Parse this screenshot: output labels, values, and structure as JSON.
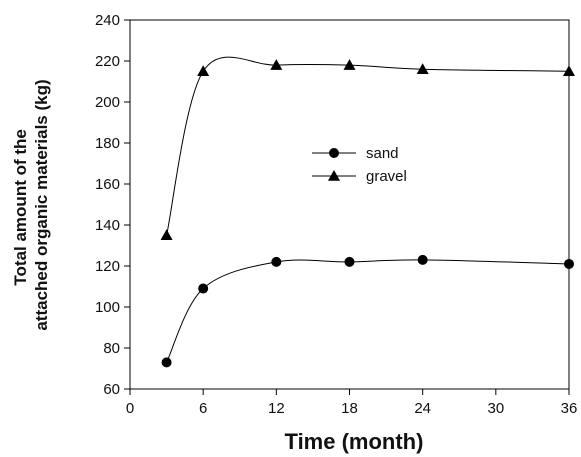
{
  "chart_data": {
    "type": "line",
    "xlabel": "Time (month)",
    "ylabel_lines": [
      "Total amount of the",
      "attached organic materials (kg)"
    ],
    "xlim": [
      0,
      36
    ],
    "ylim": [
      60,
      240
    ],
    "x_ticks": [
      0,
      6,
      12,
      18,
      24,
      30,
      36
    ],
    "y_ticks": [
      60,
      80,
      100,
      120,
      140,
      160,
      180,
      200,
      220,
      240
    ],
    "grid": false,
    "legend_position": "center",
    "series": [
      {
        "name": "sand",
        "marker": "circle",
        "color": "#000000",
        "points": [
          [
            3,
            73
          ],
          [
            6,
            109
          ],
          [
            12,
            122
          ],
          [
            18,
            122
          ],
          [
            24,
            123
          ],
          [
            36,
            121
          ]
        ]
      },
      {
        "name": "gravel",
        "marker": "triangle",
        "color": "#000000",
        "points": [
          [
            3,
            135
          ],
          [
            6,
            215
          ],
          [
            12,
            218
          ],
          [
            18,
            218
          ],
          [
            24,
            216
          ],
          [
            36,
            215
          ]
        ]
      }
    ]
  }
}
